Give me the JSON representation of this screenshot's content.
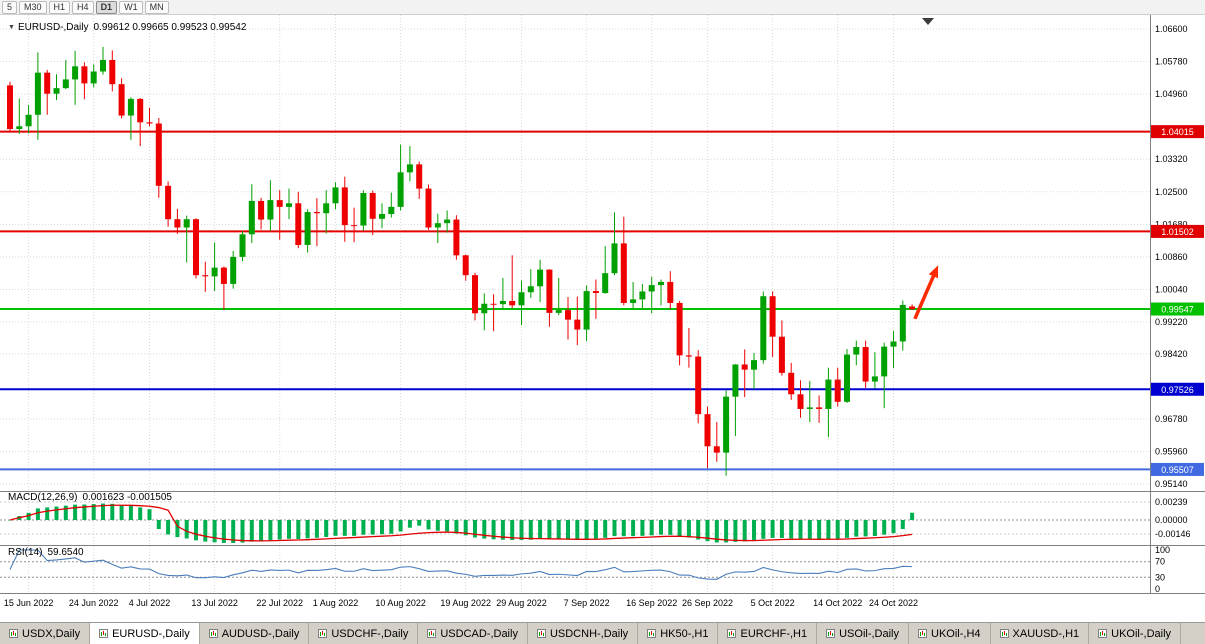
{
  "toolbar": {
    "timeframes": [
      {
        "label": "5",
        "active": false
      },
      {
        "label": "M30",
        "active": false
      },
      {
        "label": "H1",
        "active": false
      },
      {
        "label": "H4",
        "active": false
      },
      {
        "label": "D1",
        "active": true
      },
      {
        "label": "W1",
        "active": false
      },
      {
        "label": "MN",
        "active": false
      }
    ]
  },
  "chart_header": {
    "collapse_icon": "▼",
    "title": "EURUSD-,Daily",
    "ohlc_text": "0.99612 0.99665 0.99523 0.99542"
  },
  "chart_data": {
    "type": "candlestick",
    "symbol": "EURUSD-",
    "period": "Daily",
    "last_quote": {
      "open": 0.99612,
      "high": 0.99665,
      "low": 0.99523,
      "close": 0.99542
    },
    "y_axis_labels": [
      "1.06600",
      "1.05780",
      "1.04960",
      "1.03320",
      "1.02500",
      "1.01680",
      "1.00860",
      "1.00040",
      "0.99220",
      "0.98420",
      "0.96780",
      "0.95960",
      "0.95140"
    ],
    "x_axis_labels": [
      {
        "text": "15 Jun 2022",
        "index": 2
      },
      {
        "text": "24 Jun 2022",
        "index": 9
      },
      {
        "text": "4 Jul 2022",
        "index": 15
      },
      {
        "text": "13 Jul 2022",
        "index": 22
      },
      {
        "text": "22 Jul 2022",
        "index": 29
      },
      {
        "text": "1 Aug 2022",
        "index": 35
      },
      {
        "text": "10 Aug 2022",
        "index": 42
      },
      {
        "text": "19 Aug 2022",
        "index": 49
      },
      {
        "text": "29 Aug 2022",
        "index": 55
      },
      {
        "text": "7 Sep 2022",
        "index": 62
      },
      {
        "text": "16 Sep 2022",
        "index": 69
      },
      {
        "text": "26 Sep 2022",
        "index": 75
      },
      {
        "text": "5 Oct 2022",
        "index": 82
      },
      {
        "text": "14 Oct 2022",
        "index": 89
      },
      {
        "text": "24 Oct 2022",
        "index": 95
      }
    ],
    "candles": [
      [
        1.0518,
        1.0527,
        1.0399,
        1.0408
      ],
      [
        1.0408,
        1.0485,
        1.0396,
        1.0415
      ],
      [
        1.0415,
        1.0469,
        1.0397,
        1.0444
      ],
      [
        1.0444,
        1.0601,
        1.0381,
        1.055
      ],
      [
        1.055,
        1.0557,
        1.0444,
        1.0497
      ],
      [
        1.0497,
        1.0546,
        1.0481,
        1.0511
      ],
      [
        1.0511,
        1.0582,
        1.0509,
        1.0533
      ],
      [
        1.0533,
        1.0605,
        1.0469,
        1.0566
      ],
      [
        1.0566,
        1.0576,
        1.0483,
        1.0523
      ],
      [
        1.0523,
        1.0571,
        1.0513,
        1.0553
      ],
      [
        1.0553,
        1.0615,
        1.0545,
        1.0582
      ],
      [
        1.0582,
        1.0606,
        1.0503,
        1.0521
      ],
      [
        1.0521,
        1.0536,
        1.0435,
        1.0442
      ],
      [
        1.0442,
        1.0488,
        1.0381,
        1.0484
      ],
      [
        1.0484,
        1.0486,
        1.0365,
        1.0425
      ],
      [
        1.0425,
        1.0462,
        1.0415,
        1.0422
      ],
      [
        1.0422,
        1.0436,
        1.0235,
        1.0265
      ],
      [
        1.0265,
        1.0276,
        1.0162,
        1.0181
      ],
      [
        1.0181,
        1.0207,
        1.0144,
        1.016
      ],
      [
        1.016,
        1.019,
        1.0072,
        1.0181
      ],
      [
        1.0181,
        1.0183,
        1.0032,
        1.004
      ],
      [
        1.004,
        1.0074,
        0.9998,
        1.0037
      ],
      [
        1.0037,
        1.0122,
        1.0,
        1.0059
      ],
      [
        1.0059,
        1.0062,
        0.9952,
        1.0018
      ],
      [
        1.0018,
        1.0101,
        1.0006,
        1.0086
      ],
      [
        1.0086,
        1.0151,
        1.0075,
        1.0143
      ],
      [
        1.0143,
        1.0269,
        1.0121,
        1.0227
      ],
      [
        1.0227,
        1.0235,
        1.0155,
        1.018
      ],
      [
        1.018,
        1.0279,
        1.0152,
        1.0229
      ],
      [
        1.0229,
        1.0254,
        1.0129,
        1.0212
      ],
      [
        1.0212,
        1.0258,
        1.0181,
        1.0221
      ],
      [
        1.0221,
        1.025,
        1.0108,
        1.0116
      ],
      [
        1.0116,
        1.0206,
        1.0097,
        1.0199
      ],
      [
        1.0199,
        1.0234,
        1.0113,
        1.0196
      ],
      [
        1.0196,
        1.0254,
        1.0145,
        1.0221
      ],
      [
        1.0221,
        1.0274,
        1.0206,
        1.0261
      ],
      [
        1.0261,
        1.0288,
        1.0124,
        1.0166
      ],
      [
        1.0166,
        1.021,
        1.0123,
        1.0165
      ],
      [
        1.0165,
        1.0254,
        1.0152,
        1.0247
      ],
      [
        1.0247,
        1.0253,
        1.0141,
        1.0182
      ],
      [
        1.0182,
        1.0221,
        1.0158,
        1.0194
      ],
      [
        1.0194,
        1.0248,
        1.0185,
        1.0212
      ],
      [
        1.0212,
        1.0369,
        1.0203,
        1.0299
      ],
      [
        1.0299,
        1.0365,
        1.0276,
        1.0319
      ],
      [
        1.0319,
        1.0326,
        1.0232,
        1.0258
      ],
      [
        1.0258,
        1.0268,
        1.0154,
        1.016
      ],
      [
        1.016,
        1.0195,
        1.0121,
        1.0171
      ],
      [
        1.0171,
        1.0203,
        1.0147,
        1.018
      ],
      [
        1.018,
        1.0191,
        1.0079,
        1.009
      ],
      [
        1.009,
        1.0092,
        1.0026,
        1.004
      ],
      [
        1.004,
        1.0046,
        0.9926,
        0.9944
      ],
      [
        0.9944,
        0.9994,
        0.9901,
        0.9968
      ],
      [
        0.9968,
        0.9992,
        0.9899,
        0.9967
      ],
      [
        0.9967,
        1.0033,
        0.9954,
        0.9975
      ],
      [
        0.9975,
        1.009,
        0.9957,
        0.9964
      ],
      [
        0.9964,
        1.0027,
        0.9914,
        0.9997
      ],
      [
        0.9997,
        1.0055,
        0.9983,
        1.0012
      ],
      [
        1.0012,
        1.0079,
        0.9972,
        1.0054
      ],
      [
        1.0054,
        1.0055,
        0.991,
        0.9945
      ],
      [
        0.9945,
        1.0033,
        0.9939,
        0.9952
      ],
      [
        0.9952,
        0.9985,
        0.9878,
        0.9928
      ],
      [
        0.9928,
        0.9986,
        0.9864,
        0.9903
      ],
      [
        0.9903,
        1.0014,
        0.9874,
        1.0
      ],
      [
        1.0,
        1.0029,
        0.993,
        0.9995
      ],
      [
        0.9995,
        1.0113,
        0.9993,
        1.0045
      ],
      [
        1.0045,
        1.0198,
        1.004,
        1.012
      ],
      [
        1.012,
        1.0187,
        0.9964,
        0.997
      ],
      [
        0.997,
        1.0023,
        0.9955,
        0.9979
      ],
      [
        0.9979,
        1.0018,
        0.9954,
        0.9999
      ],
      [
        0.9999,
        1.0036,
        0.9944,
        1.0015
      ],
      [
        1.0015,
        1.0029,
        0.9964,
        1.0023
      ],
      [
        1.0023,
        1.005,
        0.9954,
        0.997
      ],
      [
        0.997,
        0.9975,
        0.9813,
        0.9838
      ],
      [
        0.9838,
        0.9907,
        0.9807,
        0.9835
      ],
      [
        0.9835,
        0.9851,
        0.9667,
        0.969
      ],
      [
        0.969,
        0.9709,
        0.9554,
        0.9609
      ],
      [
        0.9609,
        0.967,
        0.957,
        0.9593
      ],
      [
        0.9593,
        0.975,
        0.9535,
        0.9734
      ],
      [
        0.9734,
        0.9816,
        0.9635,
        0.9815
      ],
      [
        0.9815,
        0.9853,
        0.9733,
        0.9802
      ],
      [
        0.9802,
        0.9844,
        0.9753,
        0.9826
      ],
      [
        0.9826,
        0.9999,
        0.9817,
        0.9987
      ],
      [
        0.9987,
        0.9999,
        0.9834,
        0.9885
      ],
      [
        0.9885,
        0.9926,
        0.9787,
        0.9794
      ],
      [
        0.9794,
        0.9819,
        0.9726,
        0.974
      ],
      [
        0.974,
        0.9775,
        0.9681,
        0.9703
      ],
      [
        0.9703,
        0.9774,
        0.967,
        0.9707
      ],
      [
        0.9707,
        0.9737,
        0.9668,
        0.9703
      ],
      [
        0.9703,
        0.9807,
        0.9632,
        0.9777
      ],
      [
        0.9777,
        0.9807,
        0.9709,
        0.9721
      ],
      [
        0.9721,
        0.9854,
        0.9718,
        0.984
      ],
      [
        0.984,
        0.9875,
        0.9813,
        0.9859
      ],
      [
        0.9859,
        0.9875,
        0.9756,
        0.9772
      ],
      [
        0.9772,
        0.9846,
        0.9754,
        0.9785
      ],
      [
        0.9785,
        0.987,
        0.9705,
        0.986
      ],
      [
        0.986,
        0.9899,
        0.9806,
        0.9873
      ],
      [
        0.9873,
        0.9976,
        0.985,
        0.9965
      ],
      [
        0.99612,
        0.99665,
        0.99523,
        0.99542
      ]
    ],
    "h_lines": [
      {
        "price": 1.04015,
        "label": "1.04015",
        "color": "#E00000",
        "width": 2
      },
      {
        "price": 1.01502,
        "label": "1.01502",
        "color": "#E00000",
        "width": 2
      },
      {
        "price": 0.99547,
        "label": "0.99547",
        "color": "#00C000",
        "width": 2
      },
      {
        "price": 0.97526,
        "label": "0.97526",
        "color": "#0000D0",
        "width": 2
      },
      {
        "price": 0.95507,
        "label": "0.95507",
        "color": "#4169E1",
        "width": 2
      }
    ],
    "annotations": [
      {
        "type": "arrow",
        "from_index": 97.3,
        "from_price": 0.993,
        "to_index": 99.8,
        "to_price": 1.0065,
        "color": "#FF2A00"
      }
    ],
    "indicators": {
      "macd": {
        "name": "MACD(12,26,9)",
        "values_text": "0.001623 -0.001505",
        "fast": 12,
        "slow": 26,
        "signal": 9,
        "axis_labels": [
          "0.00239",
          "0.00000",
          "-0.00146"
        ],
        "hist_color": "#00B050",
        "signal_color": "#E00000"
      },
      "rsi": {
        "name": "RSI(14)",
        "value_text": "59.6540",
        "period": 14,
        "axis_labels": [
          "100",
          "70",
          "30",
          "0"
        ],
        "levels": [
          70,
          30
        ],
        "line_color": "#4A7EBB"
      }
    },
    "colors": {
      "bull": "#00A000",
      "bear": "#EE0000",
      "background": "#FFFFFF",
      "grid": "#DADADA"
    }
  },
  "tabs": [
    {
      "label": "USDX,Daily",
      "active": false
    },
    {
      "label": "EURUSD-,Daily",
      "active": true
    },
    {
      "label": "AUDUSD-,Daily",
      "active": false
    },
    {
      "label": "USDCHF-,Daily",
      "active": false
    },
    {
      "label": "USDCAD-,Daily",
      "active": false
    },
    {
      "label": "USDCNH-,Daily",
      "active": false
    },
    {
      "label": "HK50-,H1",
      "active": false
    },
    {
      "label": "EURCHF-,H1",
      "active": false
    },
    {
      "label": "USOil-,Daily",
      "active": false
    },
    {
      "label": "UKOil-,H4",
      "active": false
    },
    {
      "label": "XAUUSD-,H1",
      "active": false
    },
    {
      "label": "UKOil-,Daily",
      "active": false
    }
  ]
}
